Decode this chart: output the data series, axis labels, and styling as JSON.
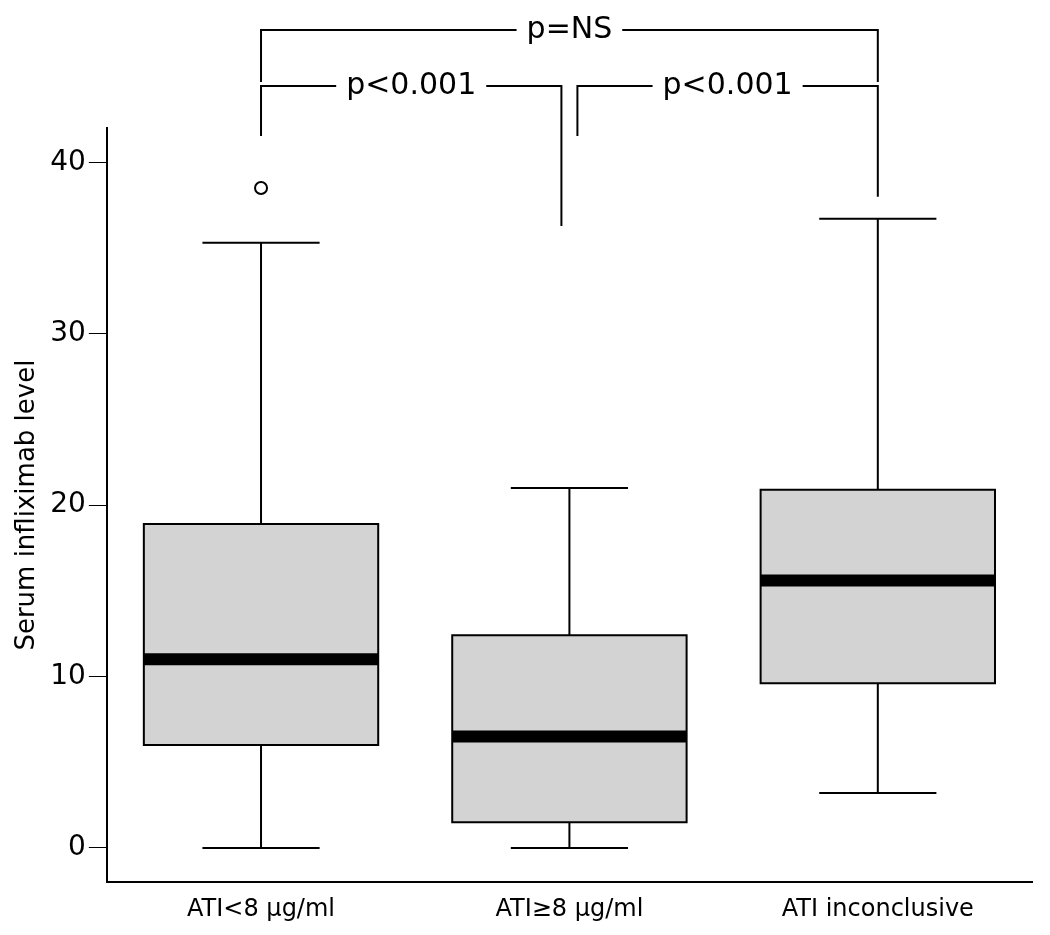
{
  "chart_data": {
    "type": "box",
    "ylabel": "Serum infliximab level",
    "categories": [
      "ATI<8 μg/ml",
      "ATI≥8 μg/ml",
      "ATI inconclusive"
    ],
    "color": "#d3d3d3",
    "boxes": [
      {
        "low": 0,
        "q1": 6,
        "median": 11,
        "q3": 18.9,
        "high": 35.3,
        "outliers": [
          38.5
        ]
      },
      {
        "low": 0,
        "q1": 1.5,
        "median": 6.5,
        "q3": 12.4,
        "high": 21
      },
      {
        "low": 3.2,
        "q1": 9.6,
        "median": 15.6,
        "q3": 20.9,
        "high": 36.7
      }
    ],
    "ylim": [
      -2,
      42
    ],
    "yticks": [
      0,
      10,
      20,
      30,
      40
    ],
    "grid": false,
    "legend": false,
    "annotations": [
      "p=NS",
      "p<0.001",
      "p<0.001"
    ]
  }
}
